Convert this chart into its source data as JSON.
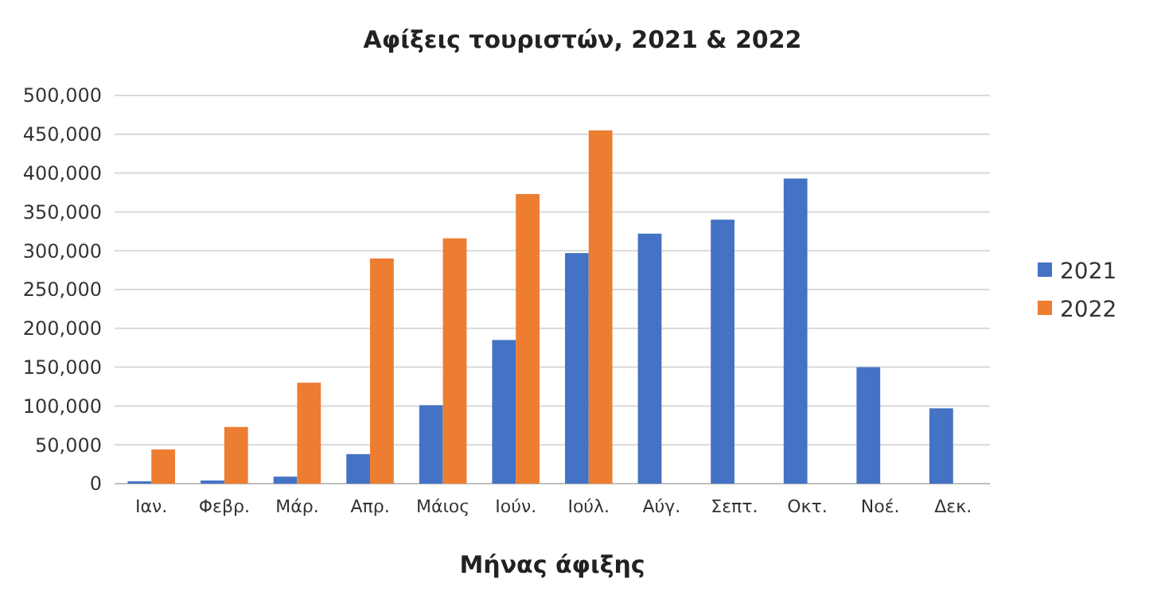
{
  "chart_data": {
    "type": "bar",
    "title": "Αφίξεις τουριστών, 2021 & 2022",
    "xlabel": "Μήνας άφιξης",
    "categories": [
      "Ιαν.",
      "Φεβρ.",
      "Μάρ.",
      "Απρ.",
      "Μάιος",
      "Ιούν.",
      "Ιούλ.",
      "Αύγ.",
      "Σεπτ.",
      "Οκτ.",
      "Νοέ.",
      "Δεκ."
    ],
    "series": [
      {
        "name": "2021",
        "color": "#4472c4",
        "values": [
          3000,
          4000,
          9000,
          38000,
          101000,
          185000,
          297000,
          322000,
          340000,
          393000,
          150000,
          97000
        ]
      },
      {
        "name": "2022",
        "color": "#ed7d31",
        "values": [
          44000,
          73000,
          130000,
          290000,
          316000,
          373000,
          455000,
          null,
          null,
          null,
          null,
          null
        ]
      }
    ],
    "ylim": [
      0,
      500000
    ],
    "yticks": [
      {
        "value": 0,
        "label": "0"
      },
      {
        "value": 50000,
        "label": "50,000"
      },
      {
        "value": 100000,
        "label": "100,000"
      },
      {
        "value": 150000,
        "label": "150,000"
      },
      {
        "value": 200000,
        "label": "200,000"
      },
      {
        "value": 250000,
        "label": "250,000"
      },
      {
        "value": 300000,
        "label": "300,000"
      },
      {
        "value": 350000,
        "label": "350,000"
      },
      {
        "value": 400000,
        "label": "400,000"
      },
      {
        "value": 450000,
        "label": "450,000"
      },
      {
        "value": 500000,
        "label": "500,000"
      }
    ],
    "grid": "y",
    "legend": "right"
  }
}
